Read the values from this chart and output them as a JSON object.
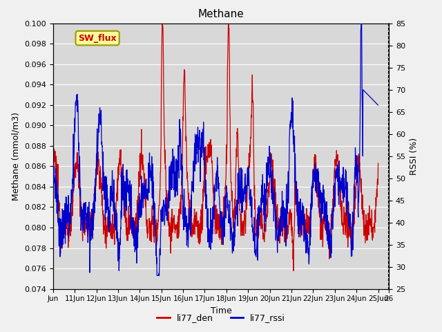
{
  "title": "Methane",
  "xlabel": "Time",
  "ylabel_left": "Methane (mmol/m3)",
  "ylabel_right": "RSSI (%)",
  "ylim_left": [
    0.074,
    0.1
  ],
  "ylim_right": [
    25,
    85
  ],
  "yticks_left": [
    0.074,
    0.076,
    0.078,
    0.08,
    0.082,
    0.084,
    0.086,
    0.088,
    0.09,
    0.092,
    0.094,
    0.096,
    0.098,
    0.1
  ],
  "yticks_right": [
    25,
    30,
    35,
    40,
    45,
    50,
    55,
    60,
    65,
    70,
    75,
    80,
    85
  ],
  "xlim": [
    0,
    15.5
  ],
  "xtick_positions": [
    0,
    1,
    2,
    3,
    4,
    5,
    6,
    7,
    8,
    9,
    10,
    11,
    12,
    13,
    14,
    15,
    15.5
  ],
  "xtick_labels": [
    "Jun",
    "11Jun",
    "12Jun",
    "13Jun",
    "14Jun",
    "15Jun",
    "16Jun",
    "17Jun",
    "18Jun",
    "19Jun",
    "20Jun",
    "21Jun",
    "22Jun",
    "23Jun",
    "24Jun",
    "25Jun",
    "26"
  ],
  "color_red": "#cc0000",
  "color_blue": "#0000cc",
  "legend_entries": [
    "li77_den",
    "li77_rssi"
  ],
  "plot_bg_color": "#d8d8d8",
  "fig_bg_color": "#f0f0f0",
  "annotation_text": "SW_flux",
  "annotation_color": "#cc0000",
  "annotation_bg": "#ffff99",
  "annotation_border": "#999900",
  "grid_color": "#ffffff",
  "linewidth": 0.9
}
